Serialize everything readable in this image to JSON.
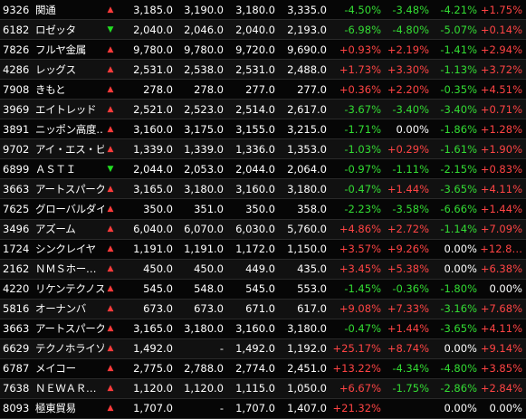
{
  "colors": {
    "background": "#000000",
    "up": "#ff3b3b",
    "down": "#22dd22",
    "text": "#ffffff"
  },
  "rows": [
    {
      "code": "9326",
      "name": "関通",
      "dir": "up",
      "v1": "3,185.0",
      "v2": "3,190.0",
      "v3": "3,180.0",
      "v4": "3,335.0",
      "p1": "-4.50%",
      "p2": "-3.48%",
      "p3": "-4.21%",
      "p4": "+1.75%"
    },
    {
      "code": "6182",
      "name": "ロゼッタ",
      "dir": "down",
      "v1": "2,040.0",
      "v2": "2,046.0",
      "v3": "2,040.0",
      "v4": "2,193.0",
      "p1": "-6.98%",
      "p2": "-4.80%",
      "p3": "-5.07%",
      "p4": "+0.14%"
    },
    {
      "code": "7826",
      "name": "フルヤ金属",
      "dir": "up",
      "v1": "9,780.0",
      "v2": "9,780.0",
      "v3": "9,720.0",
      "v4": "9,690.0",
      "p1": "+0.93%",
      "p2": "+2.19%",
      "p3": "-1.41%",
      "p4": "+2.94%"
    },
    {
      "code": "4286",
      "name": "レッグス",
      "dir": "up",
      "v1": "2,531.0",
      "v2": "2,538.0",
      "v3": "2,531.0",
      "v4": "2,488.0",
      "p1": "+1.73%",
      "p2": "+3.30%",
      "p3": "-1.13%",
      "p4": "+3.72%"
    },
    {
      "code": "7908",
      "name": "きもと",
      "dir": "up",
      "v1": "278.0",
      "v2": "278.0",
      "v3": "277.0",
      "v4": "277.0",
      "p1": "+0.36%",
      "p2": "+2.20%",
      "p3": "-0.35%",
      "p4": "+4.51%"
    },
    {
      "code": "3969",
      "name": "エイトレッド",
      "dir": "up",
      "v1": "2,521.0",
      "v2": "2,523.0",
      "v3": "2,514.0",
      "v4": "2,617.0",
      "p1": "-3.67%",
      "p2": "-3.40%",
      "p3": "-3.40%",
      "p4": "+0.71%"
    },
    {
      "code": "3891",
      "name": "ニッポン高度…",
      "dir": "up",
      "v1": "3,160.0",
      "v2": "3,175.0",
      "v3": "3,155.0",
      "v4": "3,215.0",
      "p1": "-1.71%",
      "p2": "0.00%",
      "p3": "-1.86%",
      "p4": "+1.28%"
    },
    {
      "code": "9702",
      "name": "アイ・エス・ビー",
      "dir": "up",
      "v1": "1,339.0",
      "v2": "1,339.0",
      "v3": "1,336.0",
      "v4": "1,353.0",
      "p1": "-1.03%",
      "p2": "+0.29%",
      "p3": "-1.61%",
      "p4": "+1.90%"
    },
    {
      "code": "6899",
      "name": "ＡＳＴＩ",
      "dir": "down",
      "v1": "2,044.0",
      "v2": "2,053.0",
      "v3": "2,044.0",
      "v4": "2,064.0",
      "p1": "-0.97%",
      "p2": "-1.11%",
      "p3": "-2.15%",
      "p4": "+0.83%"
    },
    {
      "code": "3663",
      "name": "アートスパーク…",
      "dir": "up",
      "v1": "3,165.0",
      "v2": "3,180.0",
      "v3": "3,160.0",
      "v4": "3,180.0",
      "p1": "-0.47%",
      "p2": "+1.44%",
      "p3": "-3.65%",
      "p4": "+4.11%"
    },
    {
      "code": "7625",
      "name": "グローバルダイ…",
      "dir": "up",
      "v1": "350.0",
      "v2": "351.0",
      "v3": "350.0",
      "v4": "358.0",
      "p1": "-2.23%",
      "p2": "-3.58%",
      "p3": "-6.66%",
      "p4": "+1.44%"
    },
    {
      "code": "3496",
      "name": "アズーム",
      "dir": "up",
      "v1": "6,040.0",
      "v2": "6,070.0",
      "v3": "6,030.0",
      "v4": "5,760.0",
      "p1": "+4.86%",
      "p2": "+2.72%",
      "p3": "-1.14%",
      "p4": "+7.09%"
    },
    {
      "code": "1724",
      "name": "シンクレイヤ",
      "dir": "up",
      "v1": "1,191.0",
      "v2": "1,191.0",
      "v3": "1,172.0",
      "v4": "1,150.0",
      "p1": "+3.57%",
      "p2": "+9.26%",
      "p3": "0.00%",
      "p4": "+12.8…"
    },
    {
      "code": "2162",
      "name": "ＮＭＳホー…",
      "dir": "up",
      "v1": "450.0",
      "v2": "450.0",
      "v3": "449.0",
      "v4": "435.0",
      "p1": "+3.45%",
      "p2": "+5.38%",
      "p3": "0.00%",
      "p4": "+6.38%"
    },
    {
      "code": "4220",
      "name": "リケンテクノス",
      "dir": "up",
      "v1": "545.0",
      "v2": "548.0",
      "v3": "545.0",
      "v4": "553.0",
      "p1": "-1.45%",
      "p2": "-0.36%",
      "p3": "-1.80%",
      "p4": "0.00%"
    },
    {
      "code": "5816",
      "name": "オーナンバ",
      "dir": "up",
      "v1": "673.0",
      "v2": "673.0",
      "v3": "671.0",
      "v4": "617.0",
      "p1": "+9.08%",
      "p2": "+7.33%",
      "p3": "-3.16%",
      "p4": "+7.68%"
    },
    {
      "code": "3663",
      "name": "アートスパーク…",
      "dir": "up",
      "v1": "3,165.0",
      "v2": "3,180.0",
      "v3": "3,160.0",
      "v4": "3,180.0",
      "p1": "-0.47%",
      "p2": "+1.44%",
      "p3": "-3.65%",
      "p4": "+4.11%"
    },
    {
      "code": "6629",
      "name": "テクノホライゾン",
      "dir": "up",
      "v1": "1,492.0",
      "v2": "-",
      "v3": "1,492.0",
      "v4": "1,192.0",
      "p1": "+25.17%",
      "p2": "+8.74%",
      "p3": "0.00%",
      "p4": "+9.14%"
    },
    {
      "code": "6787",
      "name": "メイコー",
      "dir": "up",
      "v1": "2,775.0",
      "v2": "2,788.0",
      "v3": "2,774.0",
      "v4": "2,451.0",
      "p1": "+13.22%",
      "p2": "-4.34%",
      "p3": "-4.80%",
      "p4": "+3.85%"
    },
    {
      "code": "7638",
      "name": "ＮＥＷＡＲ…",
      "dir": "up",
      "v1": "1,120.0",
      "v2": "1,120.0",
      "v3": "1,115.0",
      "v4": "1,050.0",
      "p1": "+6.67%",
      "p2": "-1.75%",
      "p3": "-2.86%",
      "p4": "+2.84%"
    },
    {
      "code": "8093",
      "name": "極東貿易",
      "dir": "up",
      "v1": "1,707.0",
      "v2": "-",
      "v3": "1,707.0",
      "v4": "1,407.0",
      "p1": "+21.32%",
      "p2": "",
      "p3": "0.00%",
      "p4": "0.00%"
    }
  ]
}
